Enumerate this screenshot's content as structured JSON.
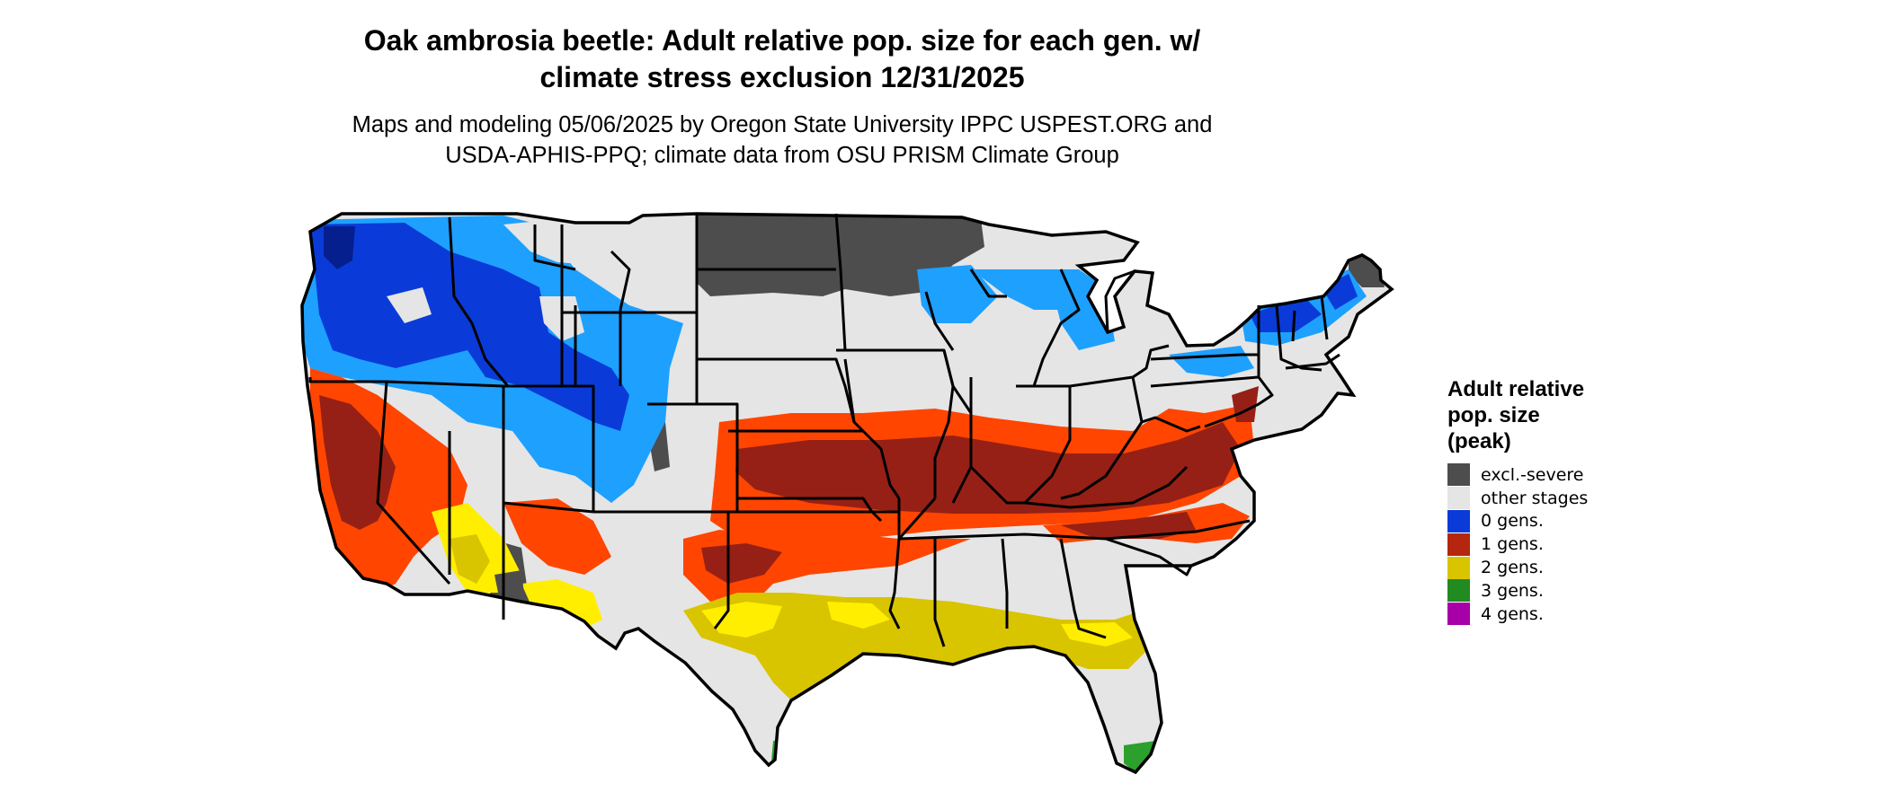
{
  "title": {
    "line1": "Oak ambrosia beetle: Adult relative pop. size for each gen. w/",
    "line2": "climate stress exclusion 12/31/2025"
  },
  "subtitle": {
    "line1": "Maps and modeling 05/06/2025 by Oregon State University IPPC USPEST.ORG and",
    "line2": "USDA-APHIS-PPQ; climate data from OSU PRISM Climate Group"
  },
  "legend": {
    "title_lines": [
      "Adult relative",
      "pop. size",
      "(peak)"
    ],
    "items": [
      {
        "label": "excl.-severe",
        "color": "#4d4d4d"
      },
      {
        "label": "other stages",
        "color": "#e5e5e5"
      },
      {
        "label": "0 gens.",
        "color": "#0a3bd9"
      },
      {
        "label": "1 gens.",
        "color": "#b5260e"
      },
      {
        "label": "2 gens.",
        "color": "#d9c400"
      },
      {
        "label": "3 gens.",
        "color": "#218a21"
      },
      {
        "label": "4 gens.",
        "color": "#a800a8"
      }
    ]
  },
  "colors": {
    "land_base": "#e5e5e5",
    "excluded": "#4d4d4d",
    "gen0_dark": "#0a3bd9",
    "gen0_light": "#1ea0ff",
    "gen1_dark": "#962015",
    "gen1_bright": "#ff4500",
    "gen2": "#d9c400",
    "gen2_light": "#ffee00",
    "gen3": "#2ca02c",
    "border": "#000000"
  }
}
